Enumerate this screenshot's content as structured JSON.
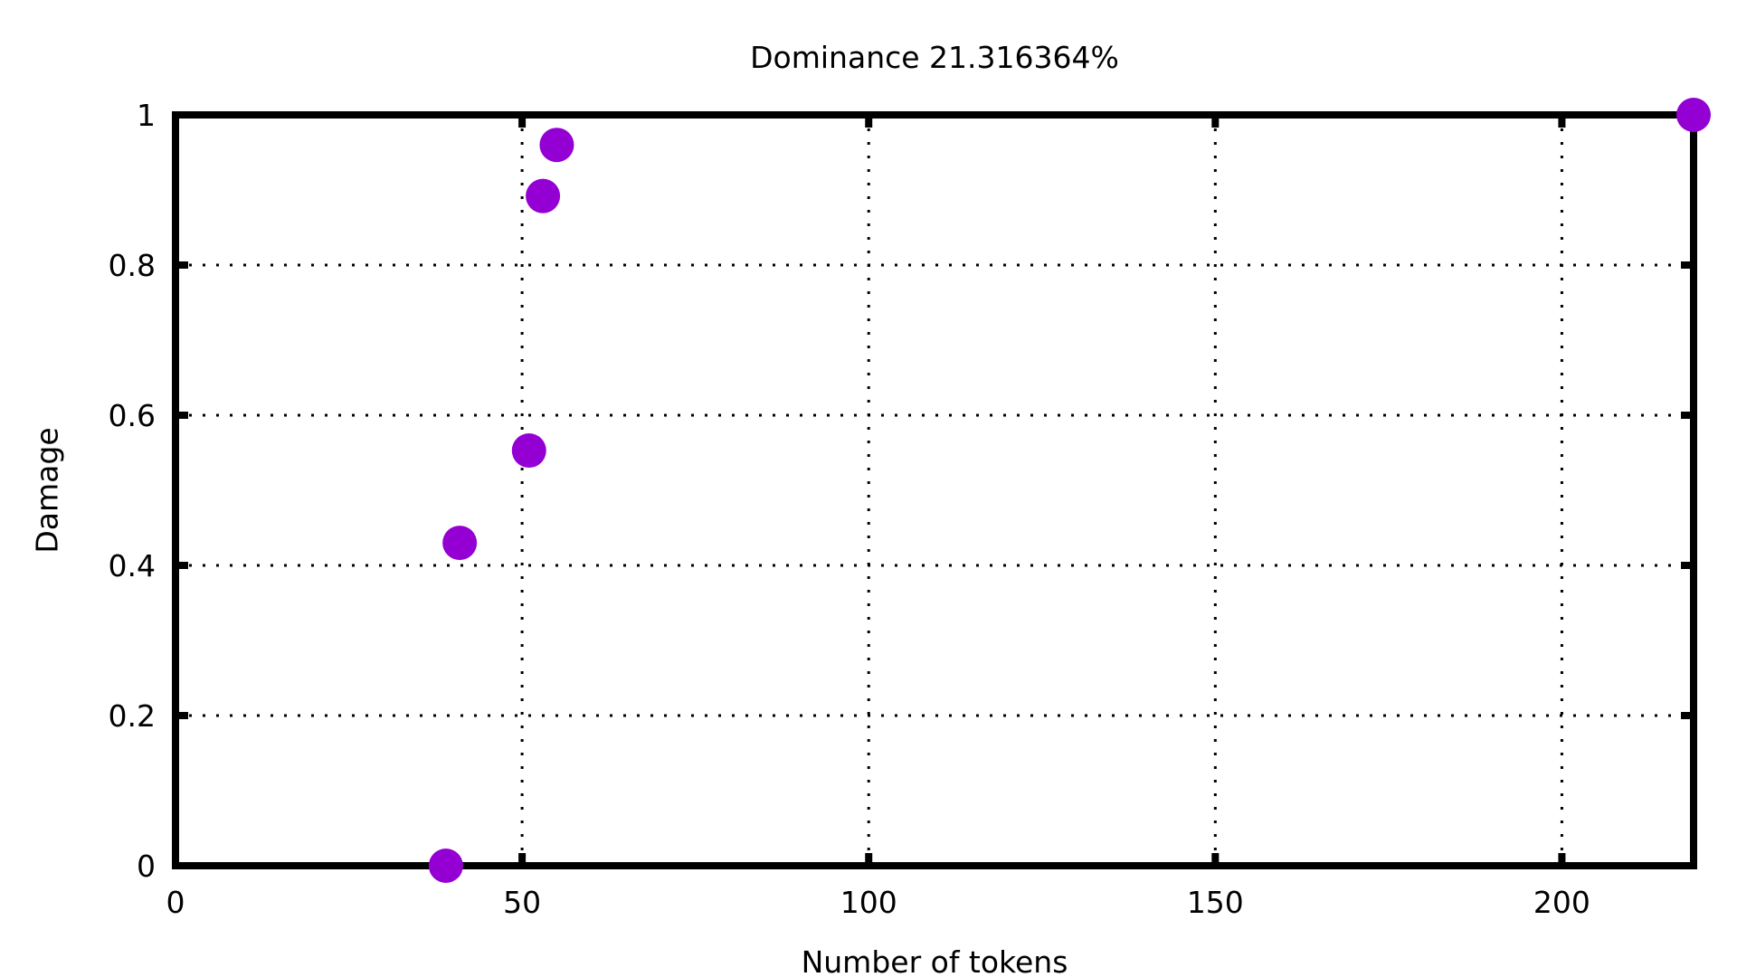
{
  "chart_data": {
    "type": "scatter",
    "title": "Dominance 21.316364%",
    "xlabel": "Number of tokens",
    "ylabel": "Damage",
    "xlim": [
      0,
      219
    ],
    "ylim": [
      0,
      1
    ],
    "x_ticks": [
      0,
      50,
      100,
      150,
      200
    ],
    "y_ticks": [
      0,
      0.2,
      0.4,
      0.6,
      0.8,
      1
    ],
    "x_tick_labels": [
      "0",
      "50",
      "100",
      "150",
      "200"
    ],
    "y_tick_labels": [
      "0",
      "0.2",
      "0.4",
      "0.6",
      "0.8",
      "1"
    ],
    "grid": true,
    "series": [
      {
        "color": "#9400d3",
        "points": [
          {
            "x": 39,
            "y": 0.0
          },
          {
            "x": 41,
            "y": 0.43
          },
          {
            "x": 51,
            "y": 0.553
          },
          {
            "x": 53,
            "y": 0.892
          },
          {
            "x": 55,
            "y": 0.96
          },
          {
            "x": 219,
            "y": 1.0
          }
        ]
      }
    ]
  }
}
